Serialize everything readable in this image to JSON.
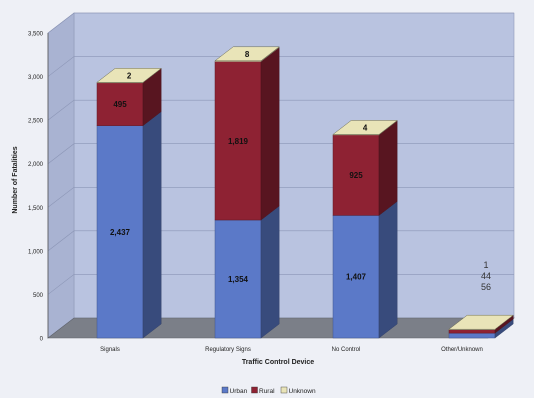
{
  "chart_data": {
    "type": "bar",
    "stacked": true,
    "three_d": true,
    "title": "",
    "xlabel": "Traffic Control Device",
    "ylabel": "Number of Fatalities",
    "ylim": [
      0,
      3500
    ],
    "yticks": [
      0,
      500,
      1000,
      1500,
      2000,
      2500,
      3000,
      3500
    ],
    "ytick_labels": [
      "0",
      "500",
      "1,000",
      "1,500",
      "2,000",
      "2,500",
      "3,000",
      "3,500"
    ],
    "categories": [
      "Signals",
      "Regulatory Signs",
      "No Control",
      "Other/Unknown"
    ],
    "series": [
      {
        "name": "Urban",
        "color": "#5b79c8",
        "values": [
          2437,
          1354,
          1407,
          56
        ],
        "labels": [
          "2,437",
          "1,354",
          "1,407",
          "56"
        ]
      },
      {
        "name": "Rural",
        "color": "#8e2233",
        "values": [
          495,
          1819,
          925,
          44
        ],
        "labels": [
          "495",
          "1,819",
          "925",
          "44"
        ]
      },
      {
        "name": "Unknown",
        "color": "#e9e4b8",
        "values": [
          2,
          8,
          4,
          1
        ],
        "labels": [
          "2",
          "8",
          "4",
          "1"
        ]
      }
    ],
    "grid": true,
    "legend_position": "bottom"
  }
}
